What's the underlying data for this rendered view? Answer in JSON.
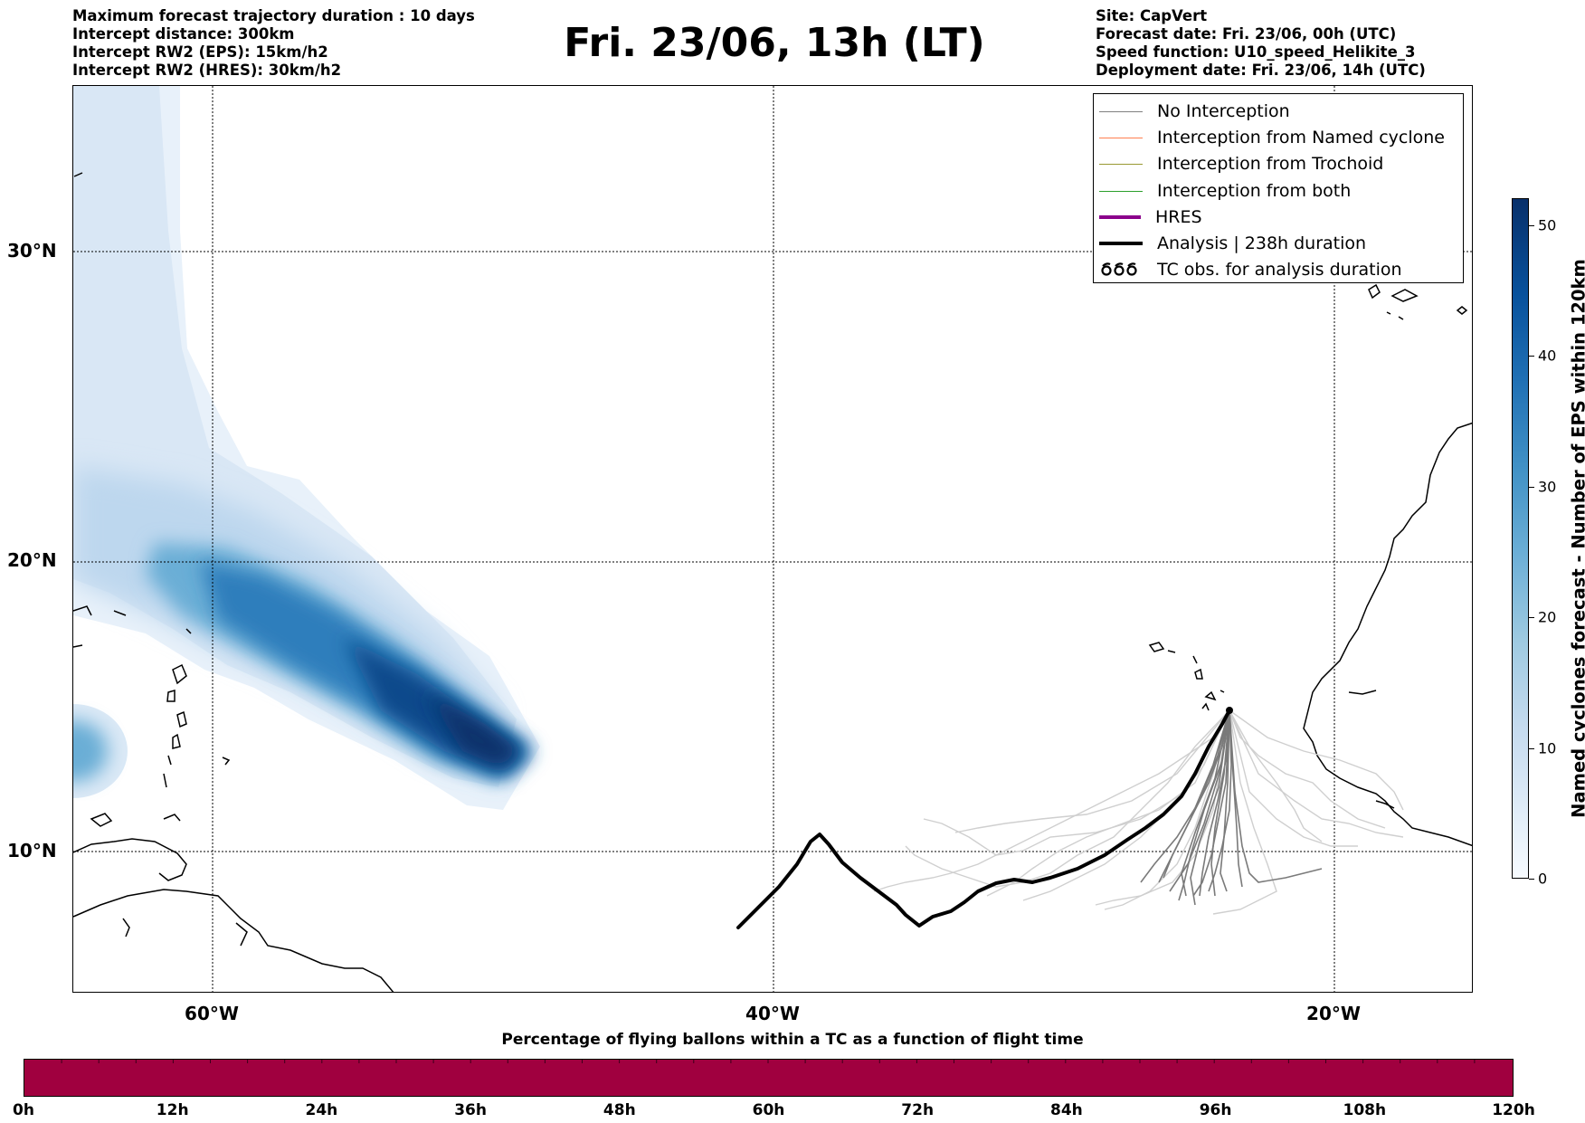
{
  "header": {
    "left_lines": [
      "Maximum forecast trajectory duration : 10 days",
      "Intercept distance: 300km",
      "Intercept RW2 (EPS):  15km/h2",
      "Intercept RW2 (HRES): 30km/h2"
    ],
    "title": "Fri. 23/06, 13h (LT)",
    "right_lines": [
      "Site: CapVert",
      "Forecast date: Fri. 23/06, 00h (UTC)",
      "Speed function: U10_speed_Helikite_3",
      "Deployment date: Fri. 23/06, 14h (UTC)"
    ]
  },
  "map": {
    "lat_labels": [
      "30°N",
      "20°N",
      "10°N"
    ],
    "lon_labels": [
      "60°W",
      "40°W",
      "20°W"
    ]
  },
  "legend": {
    "items": [
      {
        "label": "No Interception",
        "color": "#808080"
      },
      {
        "label": "Interception from Named cyclone",
        "color": "#ff7f50"
      },
      {
        "label": "Interception from Trochoid",
        "color": "#999933"
      },
      {
        "label": "Interception from both",
        "color": "#2ca02c"
      },
      {
        "label": "HRES",
        "color": "#8b008b"
      },
      {
        "label": "Analysis | 238h duration",
        "color": "#000000"
      },
      {
        "label": "TC obs. for analysis duration",
        "icon": "cyclone-symbols-icon"
      }
    ]
  },
  "colorbar": {
    "title": "Named cyclones forecast - Number of EPS within 120km",
    "ticks": [
      "0",
      "10",
      "20",
      "30",
      "40",
      "50"
    ]
  },
  "timebar": {
    "title": "Percentage of flying ballons within a TC as a function of flight time",
    "labels": [
      "0h",
      "12h",
      "24h",
      "36h",
      "48h",
      "60h",
      "72h",
      "84h",
      "96h",
      "108h",
      "120h"
    ],
    "color": "#a0003f"
  }
}
